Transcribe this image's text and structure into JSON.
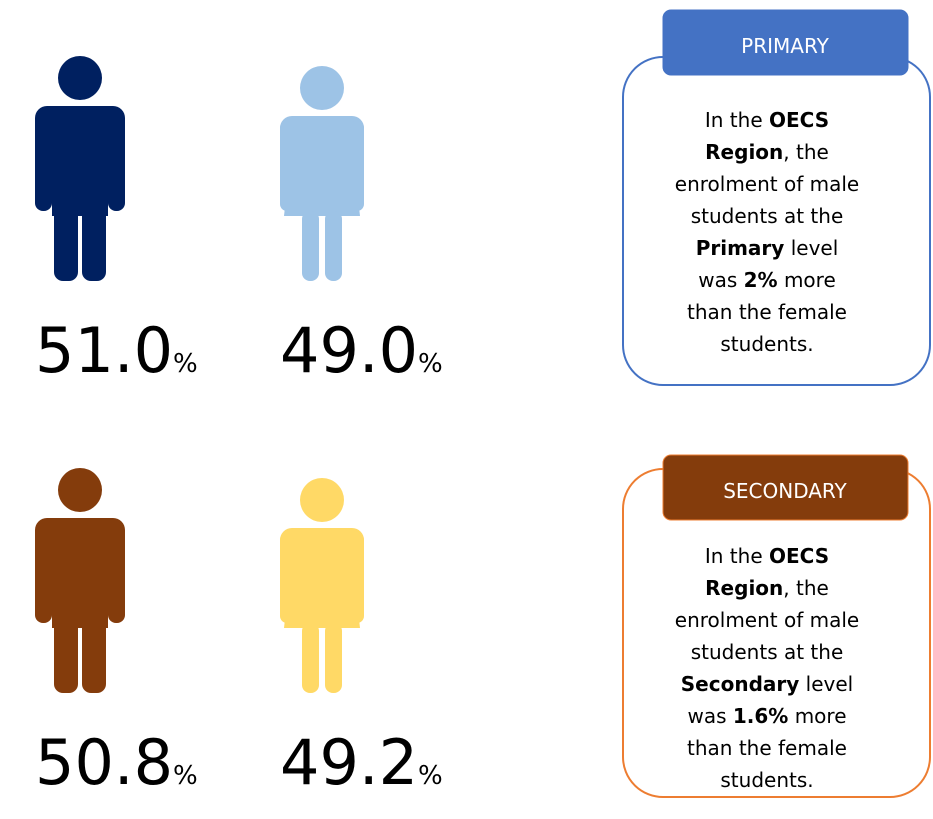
{
  "sections": [
    {
      "male": {
        "value": "51.0",
        "unit": "%",
        "color": "#002060"
      },
      "female": {
        "value": "49.0",
        "unit": "%",
        "color": "#9dc3e6"
      },
      "callout": {
        "label": "PRIMARY",
        "tab_color": "#4472c4",
        "border_color": "#4472c4",
        "lines": [
          [
            {
              "text": "In the "
            },
            {
              "text": "OECS",
              "bold": true
            }
          ],
          [
            {
              "text": "Region",
              "bold": true
            },
            {
              "text": ", the"
            }
          ],
          [
            {
              "text": "enrolment of male"
            }
          ],
          [
            {
              "text": "students at the"
            }
          ],
          [
            {
              "text": "Primary",
              "bold": true
            },
            {
              "text": " level"
            }
          ],
          [
            {
              "text": "was "
            },
            {
              "text": "2%",
              "bold": true
            },
            {
              "text": " more"
            }
          ],
          [
            {
              "text": "than the female"
            }
          ],
          [
            {
              "text": "students."
            }
          ]
        ]
      }
    },
    {
      "male": {
        "value": "50.8",
        "unit": "%",
        "color": "#843c0c"
      },
      "female": {
        "value": "49.2",
        "unit": "%",
        "color": "#ffd966"
      },
      "callout": {
        "label": "SECONDARY",
        "tab_color": "#843c0c",
        "border_color": "#ed7d31",
        "lines": [
          [
            {
              "text": "In the "
            },
            {
              "text": "OECS",
              "bold": true
            }
          ],
          [
            {
              "text": "Region",
              "bold": true
            },
            {
              "text": ", the"
            }
          ],
          [
            {
              "text": "enrolment of male"
            }
          ],
          [
            {
              "text": "students at the"
            }
          ],
          [
            {
              "text": "Secondary",
              "bold": true
            },
            {
              "text": " level"
            }
          ],
          [
            {
              "text": "was "
            },
            {
              "text": "1.6%",
              "bold": true
            },
            {
              "text": " more"
            }
          ],
          [
            {
              "text": "than the female"
            }
          ],
          [
            {
              "text": "students."
            }
          ]
        ]
      }
    }
  ]
}
